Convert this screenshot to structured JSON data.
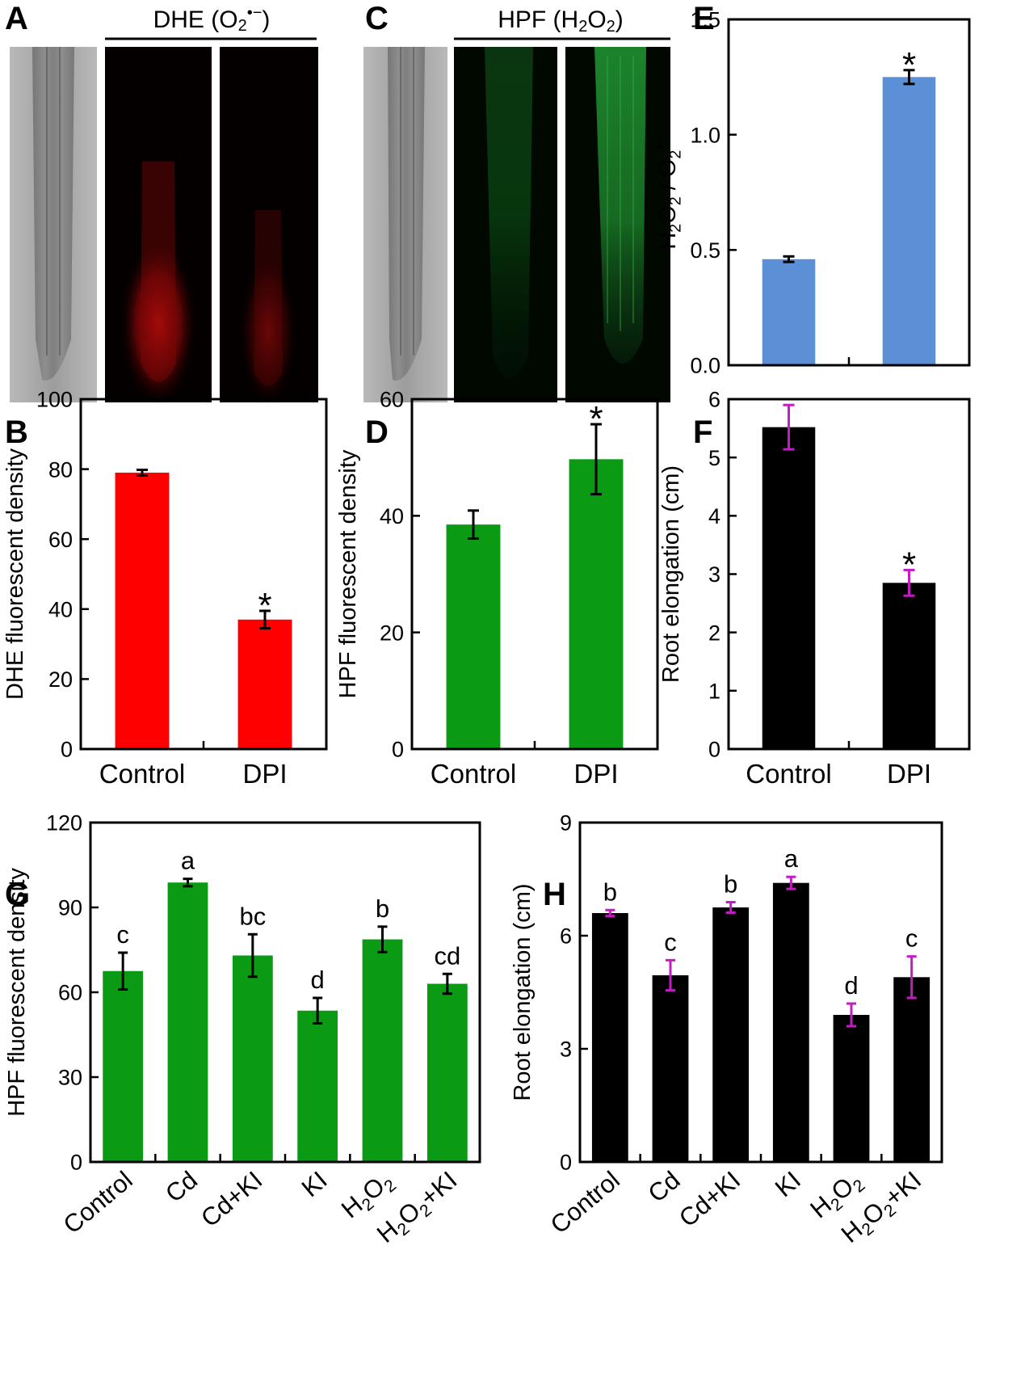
{
  "figure": {
    "panel_letters": {
      "A": "A",
      "B": "B",
      "C": "C",
      "D": "D",
      "E": "E",
      "F": "F",
      "G": "G",
      "H": "H"
    },
    "micro_headers": {
      "A": {
        "probe": "DHE",
        "species_pre": "(O",
        "species_sub": "2",
        "species_sup": "•−",
        "species_post": ")"
      },
      "C": {
        "probe": "HPF",
        "species_pre": "(H",
        "species_sub": "2",
        "species_mid": "O",
        "species_sub2": "2",
        "species_post": ")"
      }
    },
    "colors": {
      "red": "#ff0000",
      "green": "#0a9a14",
      "blue": "#5b8fd6",
      "black": "#000000",
      "magenta": "#c21cc2"
    }
  },
  "chart_data": [
    {
      "panel": "B",
      "type": "bar",
      "title": "",
      "ylabel": "DHE fluorescent density",
      "xlabel": "",
      "categories": [
        "Control",
        "DPI"
      ],
      "values": [
        79,
        37
      ],
      "errors": [
        0.8,
        2.5
      ],
      "annotations": [
        "",
        "*"
      ],
      "ylim": [
        0,
        100
      ],
      "yticks": [
        0,
        20,
        40,
        60,
        80,
        100
      ],
      "bar_color": "#ff0000",
      "error_color": "#000000"
    },
    {
      "panel": "D",
      "type": "bar",
      "title": "",
      "ylabel": "HPF fluorescent density",
      "xlabel": "",
      "categories": [
        "Control",
        "DPI"
      ],
      "values": [
        38.5,
        49.7
      ],
      "errors": [
        2.4,
        6.0
      ],
      "annotations": [
        "",
        "*"
      ],
      "ylim": [
        0,
        60
      ],
      "yticks": [
        0,
        20,
        40,
        60
      ],
      "bar_color": "#0a9a14",
      "error_color": "#000000"
    },
    {
      "panel": "E",
      "type": "bar",
      "title": "",
      "ylabel": "H2O2 / O2•−",
      "xlabel": "",
      "categories": [
        "",
        ""
      ],
      "values": [
        0.46,
        1.25
      ],
      "errors": [
        0.012,
        0.03
      ],
      "annotations": [
        "",
        "*"
      ],
      "ylim": [
        0,
        1.5
      ],
      "yticks": [
        "0.0",
        "0.5",
        "1.0",
        "1.5"
      ],
      "bar_color": "#5b8fd6",
      "error_color": "#000000"
    },
    {
      "panel": "F",
      "type": "bar",
      "title": "",
      "ylabel": "Root elongation (cm)",
      "xlabel": "",
      "categories": [
        "Control",
        "DPI"
      ],
      "values": [
        5.52,
        2.85
      ],
      "errors": [
        0.38,
        0.22
      ],
      "annotations": [
        "",
        "*"
      ],
      "ylim": [
        0,
        6
      ],
      "yticks": [
        0,
        1,
        2,
        3,
        4,
        5,
        6
      ],
      "bar_color": "#000000",
      "error_color": "#c21cc2"
    },
    {
      "panel": "G",
      "type": "bar",
      "title": "",
      "ylabel": "HPF fluorescent density",
      "xlabel": "",
      "categories": [
        "Control",
        "Cd",
        "Cd+KI",
        "KI",
        "H2O2",
        "H2O2+KI"
      ],
      "values": [
        67.5,
        98.8,
        73,
        53.5,
        78.7,
        63
      ],
      "errors": [
        6.5,
        1.3,
        7.5,
        4.5,
        4.5,
        3.5
      ],
      "annotations": [
        "c",
        "a",
        "bc",
        "d",
        "b",
        "cd"
      ],
      "ylim": [
        0,
        120
      ],
      "yticks": [
        0,
        30,
        60,
        90,
        120
      ],
      "bar_color": "#0a9a14",
      "error_color": "#000000"
    },
    {
      "panel": "H",
      "type": "bar",
      "title": "",
      "ylabel": "Root elongation (cm)",
      "xlabel": "",
      "categories": [
        "Control",
        "Cd",
        "Cd+KI",
        "KI",
        "H2O2",
        "H2O2+KI"
      ],
      "values": [
        6.6,
        4.95,
        6.75,
        7.4,
        3.9,
        4.9
      ],
      "errors": [
        0.08,
        0.4,
        0.14,
        0.16,
        0.3,
        0.55
      ],
      "annotations": [
        "b",
        "c",
        "b",
        "a",
        "d",
        "c"
      ],
      "ylim": [
        0,
        9
      ],
      "yticks": [
        0,
        3,
        6,
        9
      ],
      "bar_color": "#000000",
      "error_color": "#c21cc2"
    }
  ]
}
